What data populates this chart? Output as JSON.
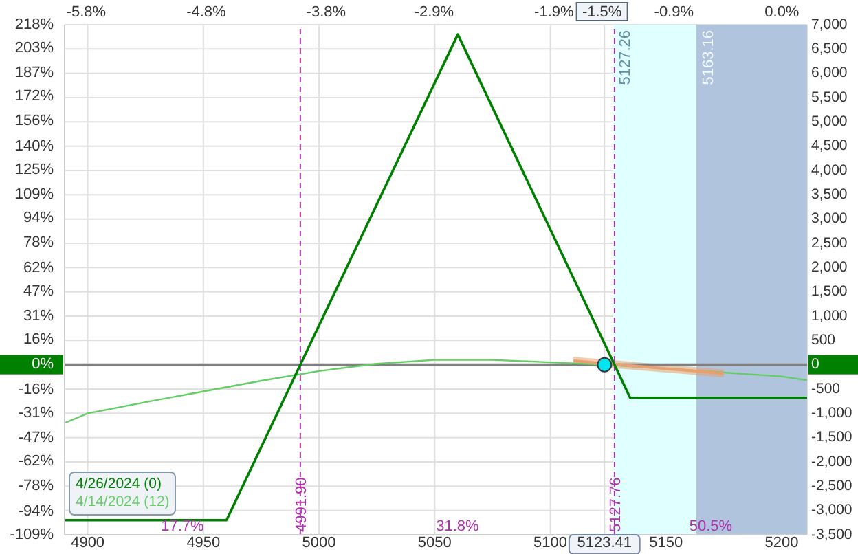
{
  "chart_data": {
    "type": "line",
    "xlim": [
      4890,
      5211
    ],
    "xticks": [
      4900,
      4950,
      5000,
      5050,
      5100,
      {
        "value": 5123.41,
        "label": "5123.41"
      },
      5150,
      5200
    ],
    "x2lim": [
      -5.98,
      0.21
    ],
    "x2ticks": [
      {
        "value": -5.8,
        "label": "-5.8%"
      },
      {
        "value": -4.8,
        "label": "-4.8%"
      },
      {
        "value": -3.8,
        "label": "-3.8%"
      },
      {
        "value": -2.9,
        "label": "-2.9%"
      },
      {
        "value": -1.9,
        "label": "-1.9%"
      },
      {
        "value": -1.5,
        "label": "-1.5%"
      },
      {
        "value": -0.9,
        "label": "-0.9%"
      },
      {
        "value": 0,
        "label": "0.0%"
      }
    ],
    "ylim": [
      -109,
      218
    ],
    "yticks": [
      {
        "value": 218,
        "label": "218%"
      },
      {
        "value": 203,
        "label": "203%"
      },
      {
        "value": 187,
        "label": "187%"
      },
      {
        "value": 172,
        "label": "172%"
      },
      {
        "value": 156,
        "label": "156%"
      },
      {
        "value": 140,
        "label": "140%"
      },
      {
        "value": 125,
        "label": "125%"
      },
      {
        "value": 109,
        "label": "109%"
      },
      {
        "value": 94,
        "label": "94%"
      },
      {
        "value": 78,
        "label": "78%"
      },
      {
        "value": 62,
        "label": "62%"
      },
      {
        "value": 47,
        "label": "47%"
      },
      {
        "value": 31,
        "label": "31%"
      },
      {
        "value": 16,
        "label": "16%"
      },
      {
        "value": 0,
        "label": "0%"
      },
      {
        "value": -16,
        "label": "-16%"
      },
      {
        "value": -31,
        "label": "-31%"
      },
      {
        "value": -47,
        "label": "-47%"
      },
      {
        "value": -62,
        "label": "-62%"
      },
      {
        "value": -78,
        "label": "-78%"
      },
      {
        "value": -94,
        "label": "-94%"
      },
      {
        "value": -109,
        "label": "-109%"
      }
    ],
    "y2lim": [
      -3500,
      7000
    ],
    "y2ticks": [
      {
        "value": 7000,
        "label": "7,000"
      },
      {
        "value": 6500,
        "label": "6,500"
      },
      {
        "value": 6000,
        "label": "6,000"
      },
      {
        "value": 5500,
        "label": "5,500"
      },
      {
        "value": 5000,
        "label": "5,000"
      },
      {
        "value": 4500,
        "label": "4,500"
      },
      {
        "value": 4000,
        "label": "4,000"
      },
      {
        "value": 3500,
        "label": "3,500"
      },
      {
        "value": 3000,
        "label": "3,000"
      },
      {
        "value": 2500,
        "label": "2,500"
      },
      {
        "value": 2000,
        "label": "2,000"
      },
      {
        "value": 1500,
        "label": "1,500"
      },
      {
        "value": 1000,
        "label": "1,000"
      },
      {
        "value": 500,
        "label": "500"
      },
      0,
      {
        "value": -500,
        "label": "-500"
      },
      {
        "value": -1000,
        "label": "-1,000"
      },
      {
        "value": -1500,
        "label": "-1,500"
      },
      {
        "value": -2000,
        "label": "-2,000"
      },
      {
        "value": -2500,
        "label": "-2,500"
      },
      {
        "value": -3000,
        "label": "-3,000"
      },
      {
        "value": -3500,
        "label": "-3,500"
      }
    ],
    "grid": true,
    "legend": "bottom left",
    "marker": "none",
    "line_style": "solid",
    "ref_lines": [
      {
        "axis": "x",
        "value": 4991.9,
        "label": "4991.90",
        "color": "#b030b0",
        "line_style": "dashed"
      },
      {
        "axis": "x",
        "value": 5127.76,
        "label": "5127.76",
        "color": "#b030b0",
        "line_style": "dashed"
      },
      {
        "axis": "y2",
        "value": 0,
        "color": "#808080",
        "line_style": "solid"
      }
    ],
    "bands": [
      {
        "axis": "x",
        "from": 5127.26,
        "to": 5163.16,
        "label": "5127.26",
        "color": "#e0ffff"
      },
      {
        "axis": "x",
        "from": 5163.16,
        "to": 5211,
        "label": "5163.16",
        "color": "#b0c4de"
      }
    ],
    "annotations": [
      "17.7%",
      "31.8%",
      "50.5%"
    ],
    "series": [
      {
        "name": "4/14/2024 (12)",
        "axis": "y2",
        "color": "#66cc66",
        "x": [
          4890,
          4900,
          4925,
          4950,
          4975,
          5000,
          5025,
          5050,
          5075,
          5100,
          5123.41,
          5150,
          5175,
          5200,
          5211
        ],
        "values": [
          -1200,
          -1000,
          -770,
          -550,
          -330,
          -130,
          20,
          100,
          100,
          50,
          0,
          -80,
          -160,
          -240,
          -320
        ]
      },
      {
        "axis": "y2",
        "color": "#e8a070",
        "x": [
          5110,
          5175
        ],
        "values": [
          80,
          -180
        ],
        "lower": [
          0,
          -260
        ],
        "upper": [
          160,
          -100
        ]
      },
      {
        "name": "4/26/2024 (0)",
        "axis": "y2",
        "color": "#008000",
        "x": [
          4890,
          4960,
          4991.9,
          5060,
          5127.76,
          5134.5,
          5211
        ],
        "values": [
          -3200,
          -3200,
          0,
          6800,
          0,
          -680,
          -680
        ]
      },
      {
        "type": "scatter",
        "axis": "y2",
        "color": "#00e5ee",
        "marker": "circle",
        "x": [
          5123.41
        ],
        "values": [
          0
        ]
      }
    ]
  }
}
